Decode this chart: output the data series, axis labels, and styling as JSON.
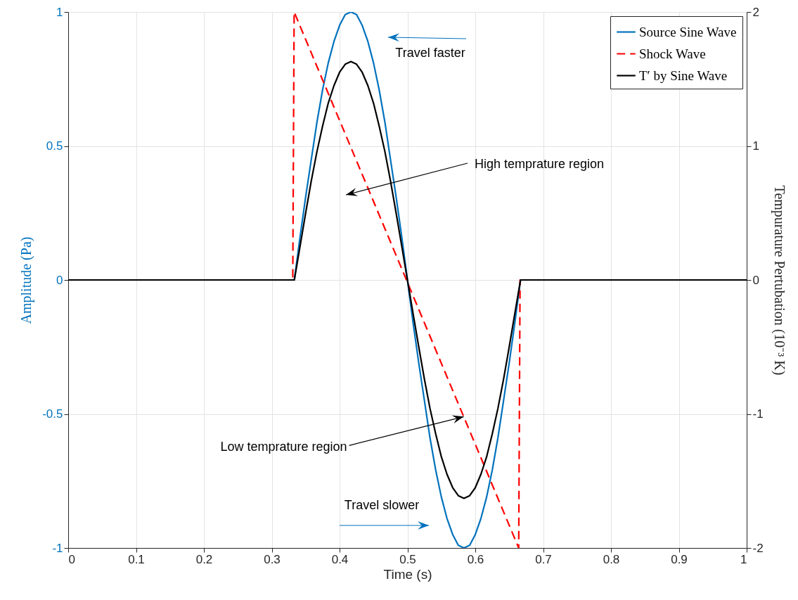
{
  "chart_data": {
    "type": "line",
    "xlabel": "Time (s)",
    "ylabel": "Amplitude (Pa)",
    "y2label": "Tempurature Pertubation (10⁻³ K)",
    "xlim": [
      0,
      1
    ],
    "xticks": [
      0,
      0.1,
      0.2,
      0.3,
      0.4,
      0.5,
      0.6,
      0.7,
      0.8,
      0.9,
      1
    ],
    "ylim": [
      -1,
      1
    ],
    "yticks": [
      -1,
      -0.5,
      0,
      0.5,
      1
    ],
    "y2lim": [
      -2,
      2
    ],
    "y2ticks": [
      -2,
      -1,
      0,
      1,
      2
    ],
    "grid": true,
    "legend": "top right",
    "series": [
      {
        "name": "Source Sine Wave",
        "color": "#0072bd",
        "x": [
          0,
          0.3333,
          0.3417,
          0.35,
          0.3583,
          0.3667,
          0.375,
          0.3833,
          0.3917,
          0.4,
          0.4083,
          0.4167,
          0.425,
          0.4333,
          0.4417,
          0.45,
          0.4583,
          0.4667,
          0.475,
          0.4833,
          0.4917,
          0.5,
          0.5083,
          0.5167,
          0.525,
          0.5333,
          0.5417,
          0.55,
          0.5583,
          0.5667,
          0.575,
          0.5833,
          0.5917,
          0.6,
          0.6083,
          0.6167,
          0.625,
          0.6333,
          0.6417,
          0.65,
          0.6583,
          0.6667,
          1
        ],
        "values": [
          0,
          0,
          0.16,
          0.31,
          0.45,
          0.59,
          0.71,
          0.81,
          0.89,
          0.95,
          0.99,
          1,
          0.99,
          0.95,
          0.89,
          0.81,
          0.71,
          0.59,
          0.45,
          0.31,
          0.16,
          0,
          -0.16,
          -0.31,
          -0.45,
          -0.59,
          -0.71,
          -0.81,
          -0.89,
          -0.95,
          -0.99,
          -1,
          -0.99,
          -0.95,
          -0.89,
          -0.81,
          -0.71,
          -0.59,
          -0.45,
          -0.31,
          -0.16,
          0,
          0
        ]
      },
      {
        "name": "Shock Wave",
        "color": "#ff0000",
        "line_style": "dashed",
        "x": [
          0,
          0.331,
          0.333,
          0.664,
          0.666,
          1
        ],
        "values": [
          0,
          0,
          1,
          -1,
          0,
          0
        ]
      },
      {
        "name": "T′ by Sine Wave",
        "color": "#000000",
        "axis": "y2",
        "x": [
          0,
          0.3333,
          0.3417,
          0.35,
          0.3583,
          0.3667,
          0.375,
          0.3833,
          0.3917,
          0.4,
          0.4083,
          0.4167,
          0.425,
          0.4333,
          0.4417,
          0.45,
          0.4583,
          0.4667,
          0.475,
          0.4833,
          0.4917,
          0.5,
          0.5083,
          0.5167,
          0.525,
          0.5333,
          0.5417,
          0.55,
          0.5583,
          0.5667,
          0.575,
          0.5833,
          0.5917,
          0.6,
          0.6083,
          0.6167,
          0.625,
          0.6333,
          0.6417,
          0.65,
          0.6583,
          0.6667,
          1
        ],
        "values": [
          0,
          0,
          0.25,
          0.5,
          0.74,
          0.96,
          1.15,
          1.32,
          1.45,
          1.55,
          1.61,
          1.63,
          1.61,
          1.55,
          1.45,
          1.32,
          1.15,
          0.96,
          0.74,
          0.5,
          0.25,
          0,
          -0.25,
          -0.5,
          -0.74,
          -0.96,
          -1.15,
          -1.32,
          -1.45,
          -1.55,
          -1.61,
          -1.63,
          -1.61,
          -1.55,
          -1.45,
          -1.32,
          -1.15,
          -0.96,
          -0.74,
          -0.5,
          -0.25,
          0,
          0
        ]
      }
    ],
    "annotations": [
      "Travel faster",
      "High temprature region",
      {
        "text": "Low temprature region",
        "x": 0.583,
        "y": -0.51
      },
      "Travel slower"
    ]
  }
}
